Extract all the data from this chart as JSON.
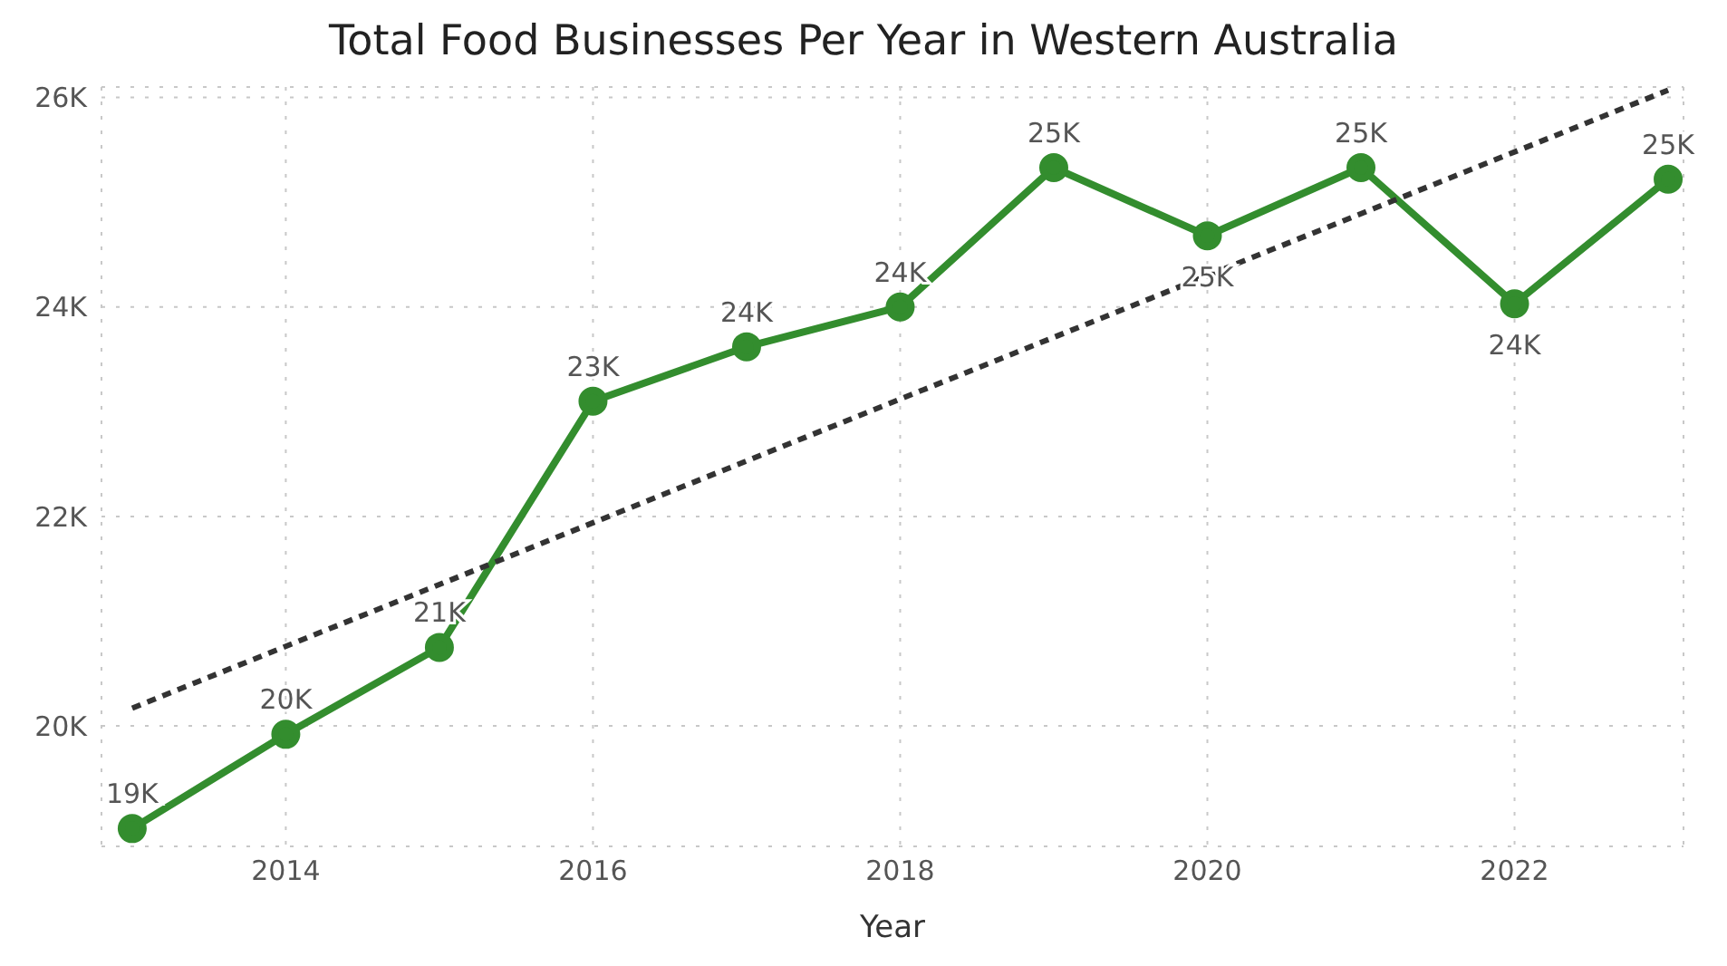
{
  "chart_data": {
    "type": "line",
    "title": "Total Food Businesses Per Year in Western Australia",
    "xlabel": "Year",
    "x": [
      2013,
      2014,
      2015,
      2016,
      2017,
      2018,
      2019,
      2020,
      2021,
      2022,
      2023
    ],
    "series": [
      {
        "color": "#338d2e",
        "marker": "circle",
        "line_style": "solid",
        "values": [
          19020,
          19920,
          20750,
          23100,
          23620,
          24000,
          25330,
          24680,
          25330,
          24030,
          25220
        ],
        "value_labels": [
          "19K",
          "20K",
          "21K",
          "23K",
          "24K",
          "24K",
          "25K",
          "25K",
          "25K",
          "24K",
          "25K"
        ]
      },
      {
        "color": "#333333",
        "marker": "none",
        "line_style": "dashed",
        "x": [
          2013,
          2023
        ],
        "values": [
          20170,
          26070
        ]
      }
    ],
    "xlim": [
      2012.8,
      2023.1
    ],
    "xticks": [
      2014,
      2016,
      2018,
      2020,
      2022
    ],
    "ylim": [
      18850,
      26100
    ],
    "yticks": [
      {
        "value": 20000,
        "label": "20K"
      },
      {
        "value": 22000,
        "label": "22K"
      },
      {
        "value": 24000,
        "label": "24K"
      },
      {
        "value": 26000,
        "label": "26K"
      }
    ],
    "grid": true
  }
}
